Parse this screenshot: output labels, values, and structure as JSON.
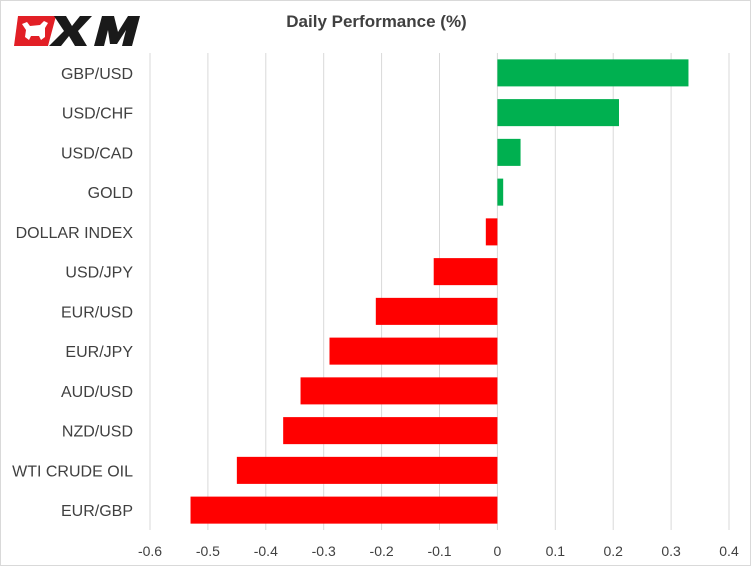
{
  "brand": {
    "name": "XM",
    "accent": "#e21f26"
  },
  "chart_data": {
    "type": "bar",
    "orientation": "horizontal",
    "title": "Daily Performance (%)",
    "xlabel": "",
    "ylabel": "",
    "categories": [
      "GBP/USD",
      "USD/CHF",
      "USD/CAD",
      "GOLD",
      "DOLLAR INDEX",
      "USD/JPY",
      "EUR/USD",
      "EUR/JPY",
      "AUD/USD",
      "NZD/USD",
      "WTI CRUDE OIL",
      "EUR/GBP"
    ],
    "values": [
      0.33,
      0.21,
      0.04,
      0.01,
      -0.02,
      -0.11,
      -0.21,
      -0.29,
      -0.34,
      -0.37,
      -0.45,
      -0.53
    ],
    "xlim": [
      -0.6,
      0.4
    ],
    "xticks": [
      "-0.6",
      "-0.5",
      "-0.4",
      "-0.3",
      "-0.2",
      "-0.1",
      "0",
      "0.1",
      "0.2",
      "0.3",
      "0.4"
    ],
    "grid": "vertical",
    "legend": "none",
    "colors": {
      "positive": "#00b050",
      "negative": "#ff0000",
      "grid": "#d9d9d9",
      "text": "#404040"
    }
  }
}
